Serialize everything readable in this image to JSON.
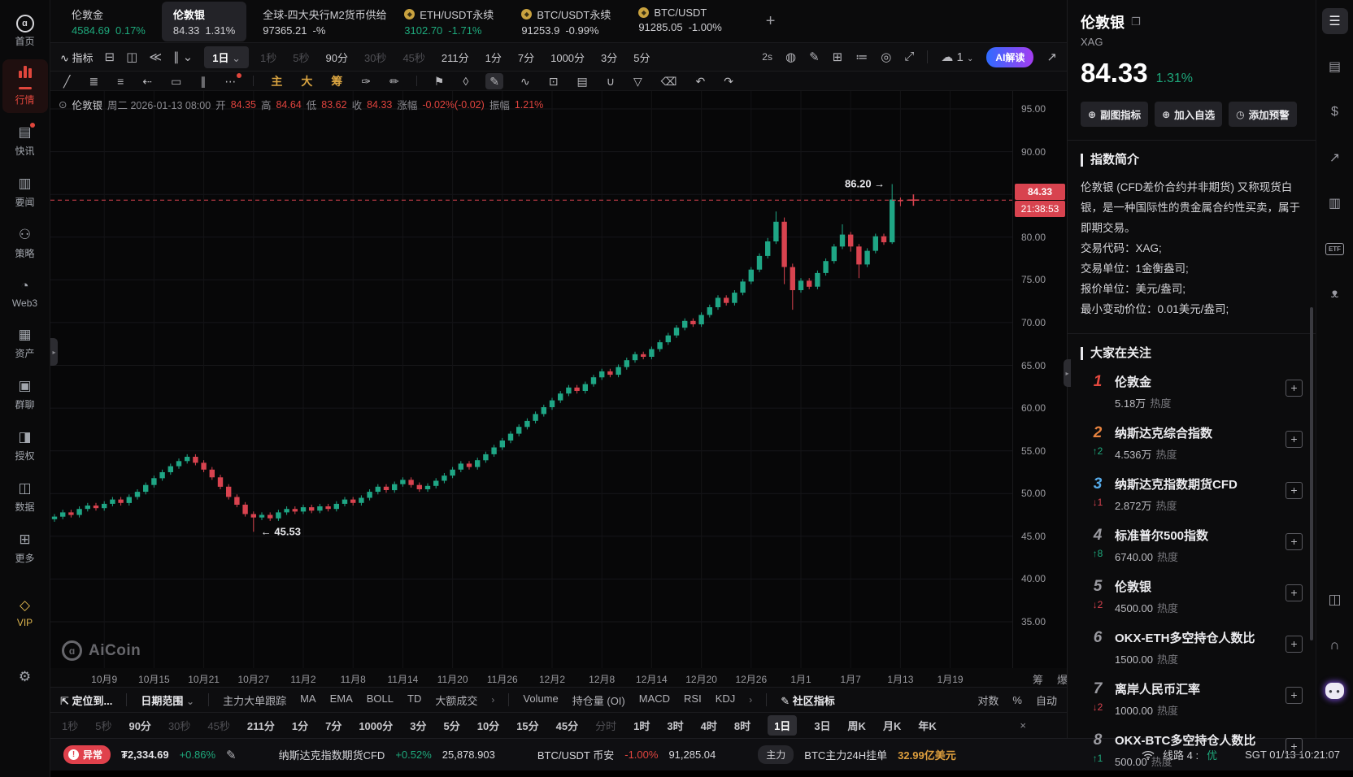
{
  "app": {
    "watermark": "AiCoin"
  },
  "sidebar": {
    "items": [
      {
        "name": "home",
        "label": "首页",
        "glyph": "logo"
      },
      {
        "name": "market",
        "label": "行情",
        "glyph": "bars",
        "active": true
      },
      {
        "name": "news-flash",
        "label": "快讯",
        "glyph": "▤",
        "dot": true
      },
      {
        "name": "headlines",
        "label": "要闻",
        "glyph": "▥"
      },
      {
        "name": "strategy",
        "label": "策略",
        "glyph": "⚇"
      },
      {
        "name": "web3",
        "label": "Web3",
        "glyph": "◔"
      },
      {
        "name": "assets",
        "label": "资产",
        "glyph": "▦"
      },
      {
        "name": "group-chat",
        "label": "群聊",
        "glyph": "▣"
      },
      {
        "name": "authorization",
        "label": "授权",
        "glyph": "◨"
      },
      {
        "name": "data",
        "label": "数据",
        "glyph": "◫"
      },
      {
        "name": "more",
        "label": "更多",
        "glyph": "⊞"
      }
    ],
    "vip_label": "VIP",
    "vip_glyph": "◇",
    "settings_glyph": "⚙"
  },
  "tabs": {
    "items": [
      {
        "name": "伦敦金",
        "price": "4584.69",
        "change": "0.17%",
        "color": "green"
      },
      {
        "name": "伦敦银",
        "price": "84.33",
        "change": "1.31%",
        "color": "plain",
        "active": true
      },
      {
        "name": "全球-四大央行M2货币供给",
        "price": "97365.21",
        "change": "-%",
        "color": "plain"
      },
      {
        "name": "ETH/USDT永续",
        "price": "3102.70",
        "change": "-1.71%",
        "color": "green",
        "coin": true
      },
      {
        "name": "BTC/USDT永续",
        "price": "91253.9",
        "change": "-0.99%",
        "color": "plain",
        "coin": true
      },
      {
        "name": "BTC/USDT",
        "price": "91285.05",
        "change": "-1.00%",
        "color": "plain",
        "coin": true
      }
    ],
    "add_label": "+"
  },
  "toolbar": {
    "indicator_icon": "∿",
    "indicator_label": "指标",
    "left_icons": [
      {
        "name": "compare-icon",
        "glyph": "⊟"
      },
      {
        "name": "layout-split-icon",
        "glyph": "◫"
      },
      {
        "name": "replay-icon",
        "glyph": "≪"
      },
      {
        "name": "chart-type-icon",
        "glyph": "∥ ⌄"
      }
    ],
    "interval_selected": "1日",
    "interval_chevron": "⌄",
    "quick_intervals": [
      {
        "label": "1秒",
        "dim": true
      },
      {
        "label": "5秒",
        "dim": true
      },
      {
        "label": "90分"
      },
      {
        "label": "30秒",
        "dim": true
      },
      {
        "label": "45秒",
        "dim": true
      },
      {
        "label": "211分"
      },
      {
        "label": "1分"
      },
      {
        "label": "7分"
      },
      {
        "label": "1000分"
      },
      {
        "label": "3分"
      },
      {
        "label": "5分"
      }
    ],
    "countdown": "2s",
    "right_icons": [
      {
        "name": "camera-icon",
        "glyph": "◍"
      },
      {
        "name": "edit-icon",
        "glyph": "✎"
      },
      {
        "name": "add-pane-icon",
        "glyph": "⊞"
      },
      {
        "name": "list-settings-icon",
        "glyph": "≔"
      },
      {
        "name": "target-icon",
        "glyph": "◎"
      },
      {
        "name": "fullscreen-icon",
        "glyph": "⤢"
      }
    ],
    "cloud_glyph": "☁",
    "cloud_count": "1",
    "ai_label": "AI解读",
    "share_glyph": "↗"
  },
  "drawbar": {
    "items": [
      {
        "name": "trend-line-tool",
        "glyph": "╱"
      },
      {
        "name": "horizontal-lines-tool",
        "glyph": "≣"
      },
      {
        "name": "line-list-tool",
        "glyph": "≡"
      },
      {
        "name": "arrow-tool",
        "glyph": "⇠"
      },
      {
        "name": "rectangle-tool",
        "glyph": "▭"
      },
      {
        "name": "channel-tool",
        "glyph": "∥"
      },
      {
        "name": "more-tools",
        "glyph": "⋯",
        "dot": true
      },
      {
        "divider": true
      },
      {
        "name": "main-chart-tool",
        "glyph": "主",
        "gold": true
      },
      {
        "name": "large-view-tool",
        "glyph": "大",
        "gold": true
      },
      {
        "name": "chip-tool",
        "glyph": "筹",
        "gold": true
      },
      {
        "name": "annotate-tool",
        "glyph": "✑"
      },
      {
        "name": "brush-add-tool",
        "glyph": "✏"
      },
      {
        "divider": true
      },
      {
        "name": "flag-tool",
        "glyph": "⚑"
      },
      {
        "name": "measure-tool",
        "glyph": "◊"
      },
      {
        "name": "pencil-tool",
        "glyph": "✎",
        "active": true
      },
      {
        "name": "pattern-tool",
        "glyph": "∿"
      },
      {
        "name": "lock-tool",
        "glyph": "⊡"
      },
      {
        "name": "order-note-tool",
        "glyph": "▤"
      },
      {
        "name": "magnet-tool",
        "glyph": "∪"
      },
      {
        "name": "filter-tool",
        "glyph": "▽"
      },
      {
        "name": "delete-tool",
        "glyph": "⌫"
      },
      {
        "name": "undo",
        "glyph": "↶"
      },
      {
        "name": "redo",
        "glyph": "↷"
      }
    ]
  },
  "ohlc": {
    "collapse_glyph": "⊙",
    "symbol": "伦敦银",
    "datetime": "周二 2026-01-13 08:00",
    "open_label": "开",
    "open": "84.35",
    "high_label": "高",
    "high": "84.64",
    "low_label": "低",
    "low": "83.62",
    "close_label": "收",
    "close": "84.33",
    "chg_label": "涨幅",
    "chg": "-0.02%(-0.02)",
    "amp_label": "振幅",
    "amp": "1.21%"
  },
  "chart_data": {
    "type": "candlestick",
    "symbol": "伦敦银",
    "period": "1日",
    "up_color": "#1fa685",
    "down_color": "#d8434f",
    "line_color": "#d8434f",
    "ylim": [
      33,
      97
    ],
    "y_ticks": [
      95,
      90,
      85,
      80,
      75,
      70,
      65,
      60,
      55,
      50,
      45,
      40,
      35
    ],
    "x_labels": [
      "10月9",
      "10月15",
      "10月21",
      "10月27",
      "11月2",
      "11月8",
      "11月14",
      "11月20",
      "11月26",
      "12月2",
      "12月8",
      "12月14",
      "12月20",
      "12月26",
      "1月1",
      "1月7",
      "1月13",
      "1月19"
    ],
    "price_line": {
      "price": 84.33,
      "label": "84.33",
      "countdown": "21:38:53"
    },
    "annotations": [
      {
        "text": "86.20 →",
        "index": 101,
        "price": 86.2,
        "align": "right"
      },
      {
        "text": "← 45.53",
        "index": 24,
        "price": 45.53,
        "align": "left"
      }
    ],
    "candles": [
      [
        47.0,
        47.6,
        46.7,
        47.3
      ],
      [
        47.3,
        48.1,
        47.0,
        47.8
      ],
      [
        47.8,
        48.1,
        47.2,
        47.5
      ],
      [
        47.5,
        48.5,
        47.2,
        48.2
      ],
      [
        48.2,
        48.9,
        47.9,
        48.6
      ],
      [
        48.6,
        48.9,
        48.0,
        48.3
      ],
      [
        48.3,
        49.1,
        48.0,
        48.8
      ],
      [
        48.8,
        49.6,
        48.5,
        49.3
      ],
      [
        49.3,
        49.6,
        48.6,
        48.9
      ],
      [
        48.9,
        49.9,
        48.6,
        49.6
      ],
      [
        49.6,
        50.5,
        49.3,
        50.2
      ],
      [
        50.2,
        51.3,
        49.9,
        51.0
      ],
      [
        51.0,
        52.1,
        50.7,
        51.8
      ],
      [
        51.8,
        52.8,
        51.5,
        52.5
      ],
      [
        52.5,
        53.5,
        52.2,
        53.2
      ],
      [
        53.2,
        54.1,
        52.9,
        53.8
      ],
      [
        53.8,
        54.6,
        53.5,
        54.3
      ],
      [
        54.3,
        54.6,
        53.3,
        53.6
      ],
      [
        53.6,
        53.9,
        52.5,
        52.8
      ],
      [
        52.8,
        53.1,
        51.6,
        51.9
      ],
      [
        51.9,
        52.2,
        50.5,
        50.8
      ],
      [
        50.8,
        51.1,
        49.3,
        49.6
      ],
      [
        49.6,
        49.9,
        48.4,
        48.7
      ],
      [
        48.7,
        49.0,
        47.3,
        47.6
      ],
      [
        47.6,
        47.9,
        45.53,
        47.2
      ],
      [
        47.2,
        47.8,
        46.9,
        47.5
      ],
      [
        47.5,
        47.8,
        46.8,
        47.1
      ],
      [
        47.1,
        48.1,
        46.8,
        47.8
      ],
      [
        47.8,
        48.5,
        47.5,
        48.2
      ],
      [
        48.2,
        48.5,
        47.6,
        47.9
      ],
      [
        47.9,
        48.7,
        47.6,
        48.4
      ],
      [
        48.4,
        48.7,
        47.7,
        48.0
      ],
      [
        48.0,
        48.8,
        47.7,
        48.5
      ],
      [
        48.5,
        48.8,
        47.9,
        48.2
      ],
      [
        48.2,
        49.1,
        47.9,
        48.8
      ],
      [
        48.8,
        49.6,
        48.5,
        49.3
      ],
      [
        49.3,
        49.6,
        48.6,
        48.9
      ],
      [
        48.9,
        49.8,
        48.6,
        49.5
      ],
      [
        49.5,
        50.5,
        49.2,
        50.2
      ],
      [
        50.2,
        51.1,
        49.9,
        50.8
      ],
      [
        50.8,
        51.1,
        50.1,
        50.4
      ],
      [
        50.4,
        51.4,
        50.1,
        51.1
      ],
      [
        51.1,
        51.9,
        50.8,
        51.6
      ],
      [
        51.6,
        51.9,
        50.7,
        51.0
      ],
      [
        51.0,
        51.3,
        50.2,
        50.5
      ],
      [
        50.5,
        51.2,
        50.2,
        50.9
      ],
      [
        50.9,
        51.8,
        50.6,
        51.5
      ],
      [
        51.5,
        52.4,
        51.2,
        52.1
      ],
      [
        52.1,
        53.1,
        51.8,
        52.8
      ],
      [
        52.8,
        53.8,
        52.5,
        53.5
      ],
      [
        53.5,
        53.8,
        52.8,
        53.1
      ],
      [
        53.1,
        54.2,
        52.8,
        53.9
      ],
      [
        53.9,
        54.9,
        53.6,
        54.6
      ],
      [
        54.6,
        55.7,
        54.3,
        55.4
      ],
      [
        55.4,
        56.5,
        55.1,
        56.2
      ],
      [
        56.2,
        57.3,
        55.9,
        57.0
      ],
      [
        57.0,
        58.1,
        56.7,
        57.8
      ],
      [
        57.8,
        58.8,
        57.5,
        58.5
      ],
      [
        58.5,
        59.6,
        58.2,
        59.3
      ],
      [
        59.3,
        60.4,
        59.0,
        60.1
      ],
      [
        60.1,
        61.2,
        59.8,
        60.9
      ],
      [
        60.9,
        62.0,
        60.6,
        61.7
      ],
      [
        61.7,
        62.7,
        61.4,
        62.4
      ],
      [
        62.4,
        62.7,
        61.7,
        62.0
      ],
      [
        62.0,
        63.1,
        61.7,
        62.8
      ],
      [
        62.8,
        63.9,
        62.5,
        63.6
      ],
      [
        63.6,
        64.6,
        63.3,
        64.3
      ],
      [
        64.3,
        64.6,
        63.6,
        63.9
      ],
      [
        63.9,
        65.1,
        63.6,
        64.8
      ],
      [
        64.8,
        65.9,
        64.5,
        65.6
      ],
      [
        65.6,
        66.6,
        65.3,
        66.3
      ],
      [
        66.3,
        66.6,
        65.7,
        66.0
      ],
      [
        66.0,
        67.2,
        65.7,
        66.9
      ],
      [
        66.9,
        68.0,
        66.6,
        67.7
      ],
      [
        67.7,
        68.8,
        67.4,
        68.5
      ],
      [
        68.5,
        69.7,
        68.2,
        69.4
      ],
      [
        69.4,
        70.5,
        69.1,
        70.2
      ],
      [
        70.2,
        70.5,
        69.5,
        69.8
      ],
      [
        69.8,
        71.2,
        69.5,
        70.9
      ],
      [
        70.9,
        72.1,
        70.6,
        71.8
      ],
      [
        71.8,
        73.2,
        71.5,
        72.9
      ],
      [
        72.9,
        73.2,
        72.0,
        72.3
      ],
      [
        72.3,
        73.8,
        72.0,
        73.5
      ],
      [
        73.5,
        75.1,
        73.2,
        74.8
      ],
      [
        74.8,
        76.5,
        74.5,
        76.2
      ],
      [
        76.2,
        78.1,
        75.9,
        77.8
      ],
      [
        77.8,
        79.9,
        77.5,
        79.5
      ],
      [
        79.5,
        83.0,
        79.2,
        81.8
      ],
      [
        81.8,
        82.3,
        74.5,
        76.5
      ],
      [
        76.5,
        76.9,
        71.5,
        73.8
      ],
      [
        73.8,
        75.2,
        73.5,
        74.9
      ],
      [
        74.9,
        75.2,
        73.9,
        74.2
      ],
      [
        74.2,
        76.1,
        73.9,
        75.8
      ],
      [
        75.8,
        77.5,
        75.5,
        77.2
      ],
      [
        77.2,
        79.2,
        76.9,
        78.9
      ],
      [
        78.9,
        81.5,
        78.6,
        80.3
      ],
      [
        80.3,
        80.6,
        78.3,
        78.9
      ],
      [
        78.9,
        79.2,
        75.2,
        76.8
      ],
      [
        76.8,
        78.7,
        76.5,
        78.4
      ],
      [
        78.4,
        80.4,
        78.1,
        80.1
      ],
      [
        80.1,
        80.4,
        79.1,
        79.4
      ],
      [
        79.4,
        86.2,
        79.2,
        84.4
      ],
      [
        84.35,
        84.64,
        83.62,
        84.33
      ]
    ]
  },
  "axis_extra": {
    "chip": "筹",
    "burst": "爆"
  },
  "indicator_bar": {
    "locate_icon": "⇱",
    "locate_label": "定位到...",
    "date_range_label": "日期范围",
    "chevron": "⌄",
    "group1": [
      "主力大单跟踪",
      "MA",
      "EMA",
      "BOLL",
      "TD",
      "大额成交"
    ],
    "group1_more": "›",
    "group2": [
      "Volume",
      "持仓量 (OI)",
      "MACD",
      "RSI",
      "KDJ"
    ],
    "group2_more": "›",
    "community_icon": "✎",
    "community_label": "社区指标",
    "right_items": [
      "对数",
      "%",
      "自动"
    ]
  },
  "interval_bar": {
    "items": [
      {
        "label": "1秒",
        "dim": true
      },
      {
        "label": "5秒",
        "dim": true
      },
      {
        "label": "90分"
      },
      {
        "label": "30秒",
        "dim": true
      },
      {
        "label": "45秒",
        "dim": true
      },
      {
        "label": "211分"
      },
      {
        "label": "1分"
      },
      {
        "label": "7分"
      },
      {
        "label": "1000分"
      },
      {
        "label": "3分"
      },
      {
        "label": "5分"
      },
      {
        "label": "10分"
      },
      {
        "label": "15分"
      },
      {
        "label": "45分"
      },
      {
        "label": "分时",
        "dim": true
      },
      {
        "label": "1时"
      },
      {
        "label": "3时"
      },
      {
        "label": "4时"
      },
      {
        "label": "8时"
      },
      {
        "label": "1日",
        "active": true
      },
      {
        "label": "3日"
      },
      {
        "label": "周K"
      },
      {
        "label": "月K"
      },
      {
        "label": "年K"
      }
    ],
    "close_glyph": "×"
  },
  "status_bar": {
    "alert_label": "异常",
    "ticker1_name": "₮2,334.69",
    "ticker1_change": "+0.86%",
    "edit_glyph": "✎",
    "ticker2_name": "纳斯达克指数期货CFD",
    "ticker2_change": "+0.52%",
    "ticker2_value": "25,878.903",
    "ticker3_name": "BTC/USDT 币安",
    "ticker3_change": "-1.00%",
    "ticker3_value": "91,285.04",
    "main_badge": "主力",
    "main_name": "BTC主力24H挂单",
    "main_value": "32.99亿美元",
    "line_label": "线路 4 :",
    "line_status": "优",
    "clock": "SGT 01/13 10:21:07"
  },
  "right_panel": {
    "title": "伦敦银",
    "copy_glyph": "❐",
    "code": "XAG",
    "price": "84.33",
    "change": "1.31%",
    "buttons": [
      {
        "name": "sub-indicator-button",
        "icon": "⊕",
        "label": "副图指标"
      },
      {
        "name": "add-watchlist-button",
        "icon": "⊕",
        "label": "加入自选"
      },
      {
        "name": "add-alert-button",
        "icon": "◷",
        "label": "添加预警"
      }
    ],
    "intro": {
      "heading": "指数简介",
      "body": "伦敦银 (CFD差价合约并非期货) 又称现货白银，是一种国际性的贵金属合约性买卖，属于即期交易。",
      "rows": [
        "交易代码：XAG;",
        "交易单位：1金衡盎司;",
        "报价单位：美元/盎司;",
        "最小变动价位：0.01美元/盎司;"
      ]
    },
    "watchlist": {
      "heading": "大家在关注",
      "heat_label": "热度",
      "items": [
        {
          "rank": "1",
          "rank_color": "#e5493f",
          "name": "伦敦金",
          "heat": "5.18万"
        },
        {
          "rank": "2",
          "rank_color": "#e5823f",
          "name": "纳斯达克综合指数",
          "trend": "↑2",
          "trend_dir": "up",
          "heat": "4.536万"
        },
        {
          "rank": "3",
          "rank_color": "#56aae8",
          "name": "纳斯达克指数期货CFD",
          "trend": "↓1",
          "trend_dir": "down",
          "heat": "2.872万"
        },
        {
          "rank": "4",
          "name": "标准普尔500指数",
          "trend": "↑8",
          "trend_dir": "up",
          "heat": "6740.00"
        },
        {
          "rank": "5",
          "name": "伦敦银",
          "trend": "↓2",
          "trend_dir": "down",
          "heat": "4500.00"
        },
        {
          "rank": "6",
          "name": "OKX-ETH多空持仓人数比",
          "heat": "1500.00"
        },
        {
          "rank": "7",
          "name": "离岸人民币汇率",
          "trend": "↓2",
          "trend_dir": "down",
          "heat": "1000.00"
        },
        {
          "rank": "8",
          "name": "OKX-BTC多空持仓人数比",
          "trend": "↑1",
          "trend_dir": "up",
          "heat": "500.00"
        }
      ]
    }
  },
  "icon_strip": {
    "items": [
      {
        "name": "quote-panel-icon",
        "glyph": "☰",
        "active": true
      },
      {
        "name": "news-panel-icon",
        "glyph": "▤"
      },
      {
        "name": "funds-panel-icon",
        "glyph": "$"
      },
      {
        "name": "trend-panel-icon",
        "glyph": "↗"
      },
      {
        "name": "stats-panel-icon",
        "glyph": "▥"
      },
      {
        "name": "etf-panel-icon",
        "glyph": "ETF",
        "boxed": true
      },
      {
        "name": "mascot-icon",
        "glyph": "ᴥ"
      },
      {
        "name": "layout-panel-icon",
        "glyph": "◫",
        "group": "bottom"
      },
      {
        "name": "support-icon",
        "glyph": "∩",
        "group": "bottom"
      },
      {
        "name": "assistant-robot-icon",
        "glyph": "● ●",
        "group": "bottom",
        "robot": true
      }
    ]
  }
}
